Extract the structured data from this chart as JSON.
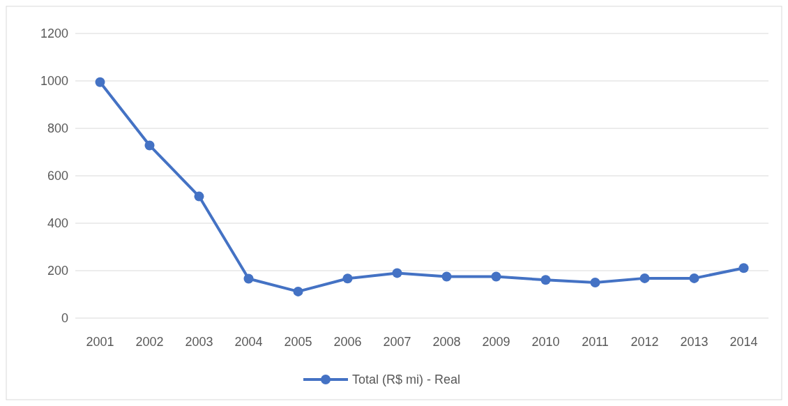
{
  "chart_data": {
    "type": "line",
    "categories": [
      "2001",
      "2002",
      "2003",
      "2004",
      "2005",
      "2006",
      "2007",
      "2008",
      "2009",
      "2010",
      "2011",
      "2012",
      "2013",
      "2014"
    ],
    "series": [
      {
        "name": "Total (R$ mi) - Real",
        "color": "#4472c4",
        "values": [
          995,
          728,
          513,
          166,
          112,
          167,
          190,
          175,
          175,
          161,
          150,
          168,
          168,
          211
        ]
      }
    ],
    "ylim": [
      0,
      1200
    ],
    "yticks": [
      0,
      200,
      400,
      600,
      800,
      1000,
      1200
    ],
    "grid": "y",
    "legend": "bottom",
    "marker": "circle"
  }
}
